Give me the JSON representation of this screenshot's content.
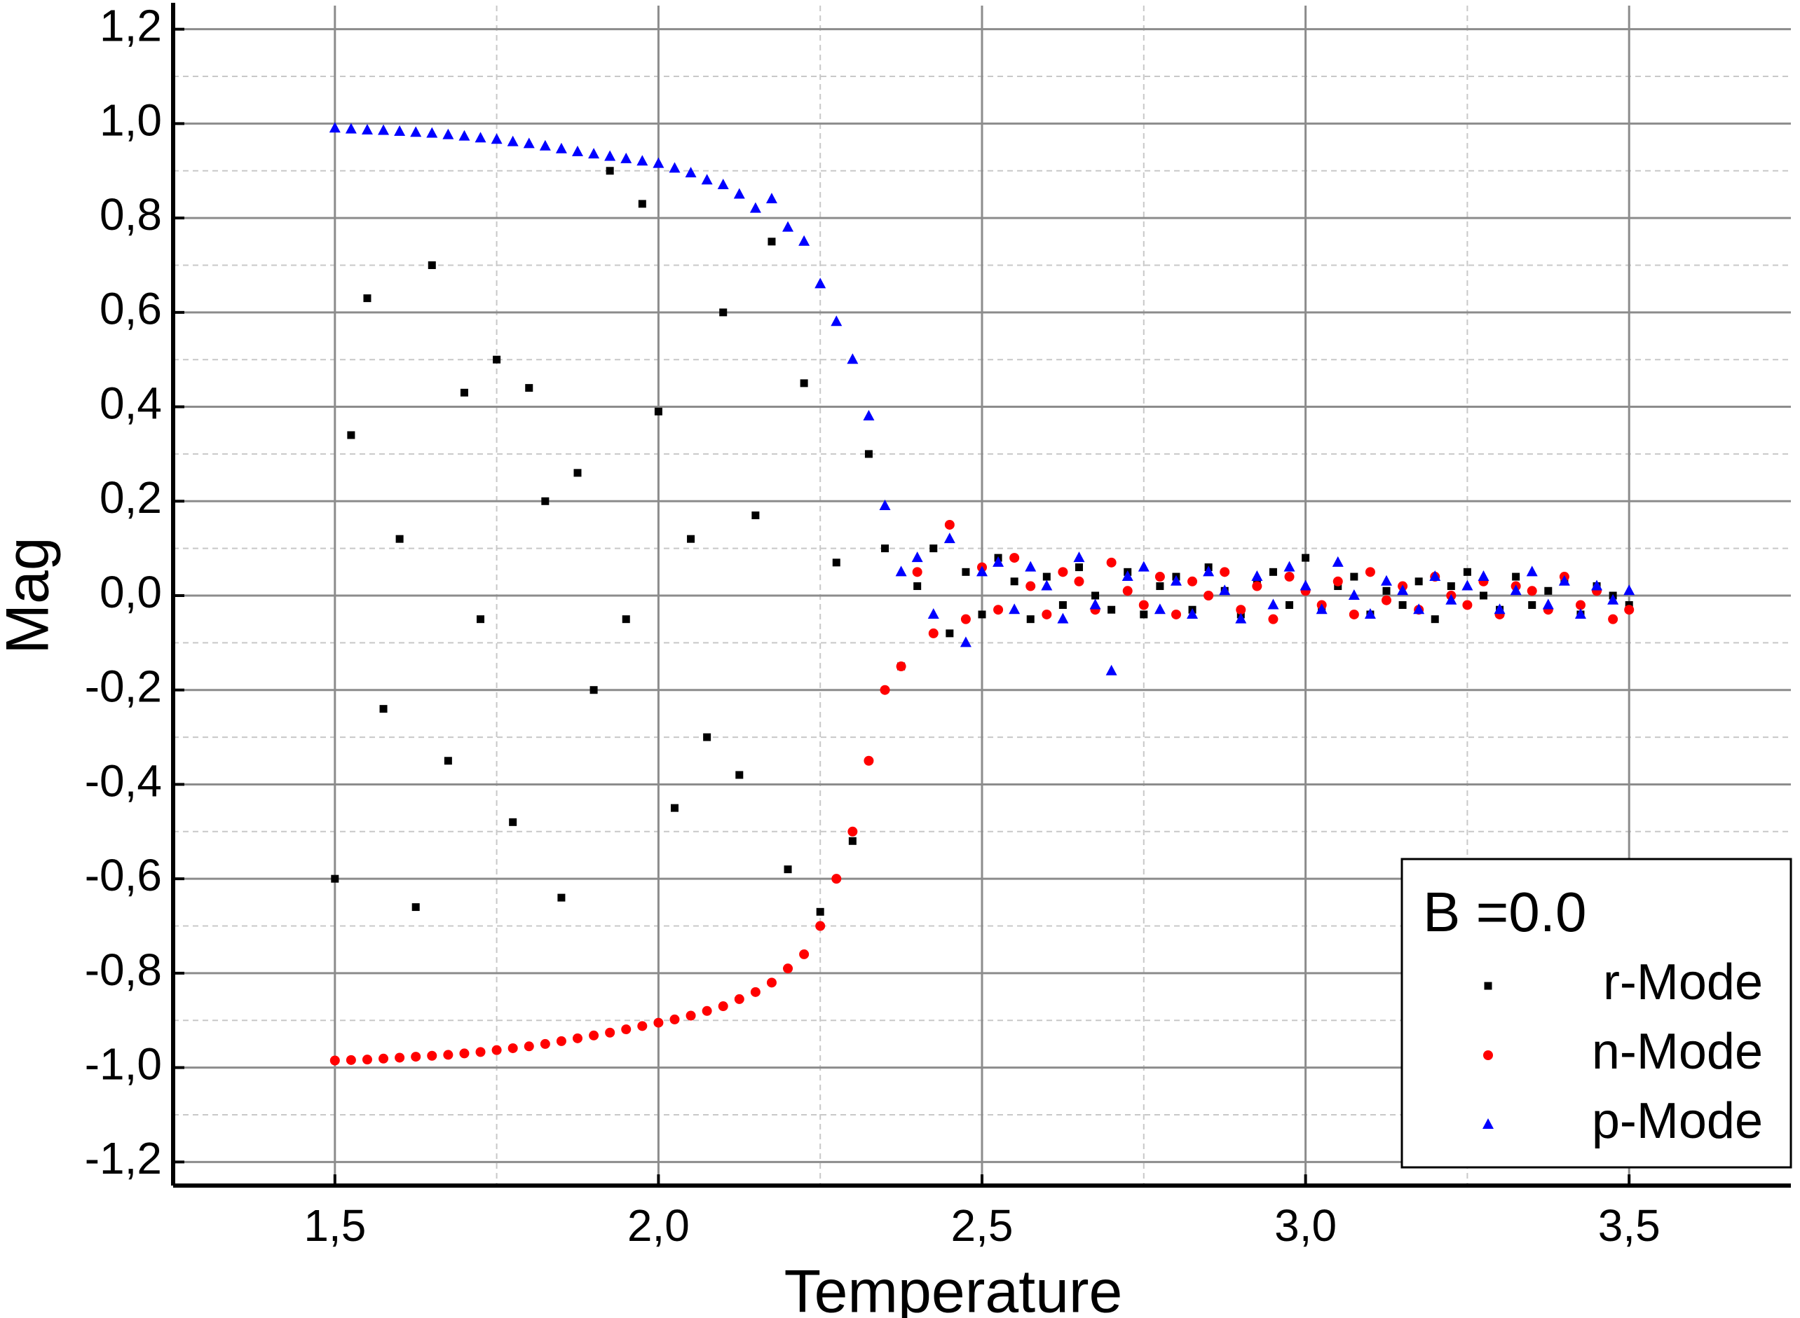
{
  "chart_data": {
    "type": "scatter",
    "x_label": "Temperature",
    "y_label": "Mag",
    "xlim": [
      1.25,
      3.75
    ],
    "ylim": [
      -1.25,
      1.25
    ],
    "xticks": [
      {
        "value": 1.5,
        "label": "1,5"
      },
      {
        "value": 2,
        "label": "2,0"
      },
      {
        "value": 2.5,
        "label": "2,5"
      },
      {
        "value": 3,
        "label": "3,0"
      },
      {
        "value": 3.5,
        "label": "3,5"
      }
    ],
    "yticks": [
      {
        "value": -1.2,
        "label": "-1,2"
      },
      {
        "value": -1,
        "label": "-1,0"
      },
      {
        "value": -0.8,
        "label": "-0,8"
      },
      {
        "value": -0.6,
        "label": "-0,6"
      },
      {
        "value": -0.4,
        "label": "-0,4"
      },
      {
        "value": -0.2,
        "label": "-0,2"
      },
      {
        "value": 0,
        "label": "0,0"
      },
      {
        "value": 0.2,
        "label": "0,2"
      },
      {
        "value": 0.4,
        "label": "0,4"
      },
      {
        "value": 0.6,
        "label": "0,6"
      },
      {
        "value": 0.8,
        "label": "0,8"
      },
      {
        "value": 1,
        "label": "1,0"
      },
      {
        "value": 1.2,
        "label": "1,2"
      }
    ],
    "xminor": [
      1.75,
      2.25,
      2.75,
      3.25
    ],
    "yminor": [
      -1.1,
      -0.9,
      -0.7,
      -0.5,
      -0.3,
      -0.1,
      0.1,
      0.3,
      0.5,
      0.7,
      0.9,
      1.1
    ],
    "grid": true,
    "legend": "lower right",
    "legend_title": "B =0.0",
    "x": [
      1.5,
      1.525,
      1.55,
      1.575,
      1.6,
      1.625,
      1.65,
      1.675,
      1.7,
      1.725,
      1.75,
      1.775,
      1.8,
      1.825,
      1.85,
      1.875,
      1.9,
      1.925,
      1.95,
      1.975,
      2,
      2.025,
      2.05,
      2.075,
      2.1,
      2.125,
      2.15,
      2.175,
      2.2,
      2.225,
      2.25,
      2.275,
      2.3,
      2.325,
      2.35,
      2.375,
      2.4,
      2.425,
      2.45,
      2.475,
      2.5,
      2.525,
      2.55,
      2.575,
      2.6,
      2.625,
      2.65,
      2.675,
      2.7,
      2.725,
      2.75,
      2.775,
      2.8,
      2.825,
      2.85,
      2.875,
      2.9,
      2.925,
      2.95,
      2.975,
      3,
      3.025,
      3.05,
      3.075,
      3.1,
      3.125,
      3.15,
      3.175,
      3.2,
      3.225,
      3.25,
      3.275,
      3.3,
      3.325,
      3.35,
      3.375,
      3.4,
      3.425,
      3.45,
      3.475,
      3.5
    ],
    "series": [
      {
        "name": "r-Mode",
        "color": "#000000",
        "marker": "square",
        "values": [
          -0.6,
          0.34,
          0.63,
          -0.24,
          0.12,
          -0.66,
          0.7,
          -0.35,
          0.43,
          -0.05,
          0.5,
          -0.48,
          0.44,
          0.2,
          -0.64,
          0.26,
          -0.2,
          0.9,
          -0.05,
          0.83,
          0.39,
          -0.45,
          0.12,
          -0.3,
          0.6,
          -0.38,
          0.17,
          0.75,
          -0.58,
          0.45,
          -0.67,
          0.07,
          -0.52,
          0.3,
          0.1,
          -0.15,
          0.02,
          0.1,
          -0.08,
          0.05,
          -0.04,
          0.08,
          0.03,
          -0.05,
          0.04,
          -0.02,
          0.06,
          0.0,
          -0.03,
          0.05,
          -0.04,
          0.02,
          0.04,
          -0.03,
          0.06,
          0.01,
          -0.04,
          0.03,
          0.05,
          -0.02,
          0.08,
          -0.03,
          0.02,
          0.04,
          -0.04,
          0.01,
          -0.02,
          0.03,
          -0.05,
          0.02,
          0.05,
          0.0,
          -0.03,
          0.04,
          -0.02,
          0.01,
          0.03,
          -0.04,
          0.02,
          0.0,
          -0.02
        ]
      },
      {
        "name": "n-Mode",
        "color": "#ff0000",
        "marker": "circle",
        "values": [
          -0.985,
          -0.984,
          -0.983,
          -0.981,
          -0.979,
          -0.977,
          -0.975,
          -0.973,
          -0.97,
          -0.967,
          -0.963,
          -0.959,
          -0.955,
          -0.95,
          -0.944,
          -0.938,
          -0.932,
          -0.926,
          -0.919,
          -0.912,
          -0.905,
          -0.898,
          -0.89,
          -0.88,
          -0.87,
          -0.855,
          -0.84,
          -0.82,
          -0.79,
          -0.76,
          -0.7,
          -0.6,
          -0.5,
          -0.35,
          -0.2,
          -0.15,
          0.05,
          -0.08,
          0.15,
          -0.05,
          0.06,
          -0.03,
          0.08,
          0.02,
          -0.04,
          0.05,
          0.03,
          -0.03,
          0.07,
          0.01,
          -0.02,
          0.04,
          -0.04,
          0.03,
          0.0,
          0.05,
          -0.03,
          0.02,
          -0.05,
          0.04,
          0.01,
          -0.02,
          0.03,
          -0.04,
          0.05,
          -0.01,
          0.02,
          -0.03,
          0.04,
          0.0,
          -0.02,
          0.03,
          -0.04,
          0.02,
          0.01,
          -0.03,
          0.04,
          -0.02,
          0.01,
          -0.05,
          -0.03
        ]
      },
      {
        "name": "p-Mode",
        "color": "#0000ff",
        "marker": "triangle",
        "values": [
          0.99,
          0.988,
          0.986,
          0.985,
          0.983,
          0.981,
          0.979,
          0.976,
          0.973,
          0.969,
          0.966,
          0.961,
          0.957,
          0.952,
          0.946,
          0.94,
          0.935,
          0.93,
          0.925,
          0.92,
          0.915,
          0.905,
          0.895,
          0.88,
          0.87,
          0.85,
          0.82,
          0.84,
          0.78,
          0.75,
          0.66,
          0.58,
          0.5,
          0.38,
          0.19,
          0.05,
          0.08,
          -0.04,
          0.12,
          -0.1,
          0.05,
          0.07,
          -0.03,
          0.06,
          0.02,
          -0.05,
          0.08,
          -0.02,
          -0.16,
          0.04,
          0.06,
          -0.03,
          0.03,
          -0.04,
          0.05,
          0.01,
          -0.05,
          0.04,
          -0.02,
          0.06,
          0.02,
          -0.03,
          0.07,
          0.0,
          -0.04,
          0.03,
          0.01,
          -0.03,
          0.04,
          -0.01,
          0.02,
          0.04,
          -0.03,
          0.01,
          0.05,
          -0.02,
          0.03,
          -0.04,
          0.02,
          -0.01,
          0.01
        ]
      }
    ]
  }
}
